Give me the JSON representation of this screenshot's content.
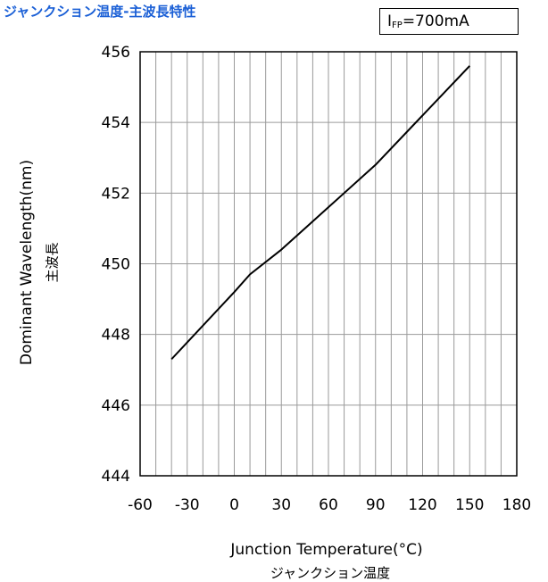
{
  "header": {
    "title": "ジャンクション温度-主波長特性",
    "condition_main": "I",
    "condition_sub": "FP",
    "condition_value": "=700mA"
  },
  "axes": {
    "ylabel": "Dominant Wavelength(nm)",
    "ylabel_jp": "主波長",
    "xlabel": "Junction Temperature(°C)",
    "xlabel_jp": "ジャンクション温度"
  },
  "chart_data": {
    "type": "line",
    "title": "ジャンクション温度-主波長特性",
    "xlabel": "Junction Temperature(°C)",
    "ylabel": "Dominant Wavelength(nm)",
    "xlim": [
      -60,
      180
    ],
    "ylim": [
      444,
      456
    ],
    "xticks": [
      -60,
      -30,
      0,
      30,
      60,
      90,
      120,
      150,
      180
    ],
    "yticks": [
      444,
      446,
      448,
      450,
      452,
      454,
      456
    ],
    "x_minor_step": 10,
    "y_minor_step": 2,
    "grid": true,
    "series": [
      {
        "x": [
          -40,
          0,
          10,
          30,
          60,
          90,
          120,
          150
        ],
        "y": [
          447.3,
          449.2,
          449.7,
          450.4,
          451.6,
          452.8,
          454.2,
          455.6
        ]
      }
    ]
  }
}
